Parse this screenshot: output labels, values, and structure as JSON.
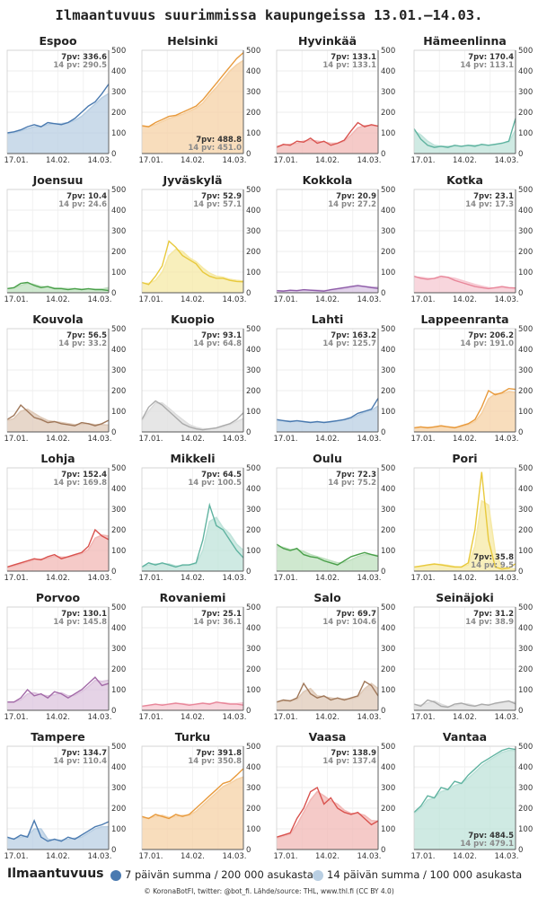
{
  "title": "Ilmaantuvuus suurimmissa kaupungeissa 13.01.–14.03.",
  "legend": {
    "title": "Ilmaantuvuus",
    "item_7": "7 päivän summa / 200 000 asukasta",
    "item_14": "14 päivän summa / 100 000 asukasta",
    "color_7": "#4a7ab0",
    "color_14": "#b9cfe3"
  },
  "footer": "© KoronaBotFI, twitter: @bot_fi. Lähde/source: THL, www.thl.fi (CC BY 4.0)",
  "chart_data": {
    "type": "line",
    "x": [
      "13.01.",
      "17.01.",
      "21.01.",
      "25.01.",
      "29.01.",
      "02.02.",
      "06.02.",
      "10.02.",
      "14.02.",
      "18.02.",
      "22.02.",
      "26.02.",
      "02.03.",
      "06.03.",
      "10.03.",
      "14.03."
    ],
    "xticks": [
      "17.01.",
      "14.02.",
      "14.03."
    ],
    "yticks": [
      "0",
      "100",
      "200",
      "300",
      "400",
      "500"
    ],
    "ylim": [
      0,
      500
    ],
    "label_7_prefix": "7pv: ",
    "label_14_prefix": "14 pv: ",
    "panels": [
      {
        "city": "Espoo",
        "color": "#4a7ab0",
        "light": "#b9cfe3",
        "label7": "336.6",
        "label14": "290.5",
        "label_pos": "top",
        "v7": [
          100,
          105,
          115,
          130,
          140,
          130,
          150,
          145,
          140,
          150,
          170,
          200,
          230,
          250,
          290,
          336.6
        ],
        "v14": [
          95,
          100,
          110,
          120,
          130,
          130,
          140,
          145,
          145,
          150,
          160,
          180,
          210,
          240,
          270,
          290.5
        ]
      },
      {
        "city": "Helsinki",
        "color": "#e89a3c",
        "light": "#f6d2a6",
        "label7": "488.8",
        "label14": "451.0",
        "label_pos": "bottom",
        "v7": [
          135,
          130,
          150,
          165,
          180,
          185,
          200,
          215,
          230,
          260,
          300,
          340,
          380,
          420,
          460,
          488.8
        ],
        "v14": [
          130,
          130,
          140,
          155,
          170,
          180,
          190,
          205,
          220,
          245,
          285,
          320,
          360,
          400,
          430,
          451.0
        ]
      },
      {
        "city": "Hyvinkää",
        "color": "#d9534f",
        "light": "#f2b8b6",
        "label7": "133.1",
        "label14": "133.1",
        "label_pos": "top",
        "v7": [
          30,
          45,
          40,
          60,
          55,
          75,
          50,
          60,
          40,
          50,
          65,
          110,
          150,
          130,
          140,
          133.1
        ],
        "v14": [
          35,
          40,
          45,
          50,
          60,
          65,
          60,
          55,
          50,
          50,
          60,
          90,
          125,
          135,
          135,
          133.1
        ]
      },
      {
        "city": "Hämeenlinna",
        "color": "#5fb3a0",
        "light": "#bfe3da",
        "label7": "170.4",
        "label14": "113.1",
        "label_pos": "top",
        "v7": [
          120,
          70,
          40,
          30,
          35,
          30,
          40,
          35,
          40,
          35,
          45,
          40,
          45,
          50,
          60,
          170.4
        ],
        "v14": [
          110,
          90,
          60,
          40,
          35,
          35,
          35,
          35,
          40,
          40,
          40,
          40,
          45,
          50,
          55,
          113.1
        ]
      },
      {
        "city": "Joensuu",
        "color": "#4aa04a",
        "light": "#bfe0bf",
        "label7": "10.4",
        "label14": "24.6",
        "label_pos": "top",
        "v7": [
          20,
          25,
          45,
          50,
          35,
          25,
          30,
          20,
          20,
          15,
          20,
          15,
          20,
          15,
          15,
          10.4
        ],
        "v14": [
          20,
          22,
          35,
          45,
          40,
          30,
          28,
          24,
          22,
          20,
          20,
          18,
          18,
          18,
          18,
          24.6
        ]
      },
      {
        "city": "Jyväskylä",
        "color": "#e8c93c",
        "light": "#f6e9a6",
        "label7": "52.9",
        "label14": "57.1",
        "label_pos": "top",
        "v7": [
          50,
          40,
          80,
          130,
          250,
          220,
          180,
          160,
          140,
          100,
          80,
          70,
          70,
          60,
          55,
          52.9
        ],
        "v14": [
          45,
          45,
          60,
          100,
          180,
          210,
          200,
          170,
          150,
          120,
          95,
          80,
          75,
          65,
          60,
          57.1
        ]
      },
      {
        "city": "Kokkola",
        "color": "#8e5ca8",
        "light": "#d8c4e3",
        "label7": "20.9",
        "label14": "27.2",
        "label_pos": "top",
        "v7": [
          10,
          8,
          12,
          10,
          15,
          12,
          10,
          8,
          15,
          20,
          25,
          30,
          35,
          30,
          25,
          20.9
        ],
        "v14": [
          10,
          9,
          10,
          11,
          12,
          13,
          12,
          10,
          12,
          15,
          20,
          25,
          30,
          30,
          28,
          27.2
        ]
      },
      {
        "city": "Kotka",
        "color": "#e8879a",
        "light": "#f6c8d2",
        "label7": "23.1",
        "label14": "17.3",
        "label_pos": "top",
        "v7": [
          80,
          70,
          65,
          70,
          80,
          75,
          60,
          50,
          40,
          30,
          25,
          20,
          25,
          30,
          25,
          23.1
        ],
        "v14": [
          75,
          75,
          70,
          68,
          72,
          75,
          70,
          60,
          50,
          40,
          32,
          25,
          22,
          25,
          22,
          17.3
        ]
      },
      {
        "city": "Kouvola",
        "color": "#a0785a",
        "light": "#dfcab8",
        "label7": "56.5",
        "label14": "33.2",
        "label_pos": "top",
        "v7": [
          60,
          80,
          130,
          100,
          70,
          60,
          45,
          50,
          40,
          35,
          30,
          45,
          40,
          30,
          40,
          56.5
        ],
        "v14": [
          55,
          65,
          100,
          110,
          90,
          70,
          55,
          50,
          45,
          40,
          35,
          38,
          40,
          35,
          35,
          33.2
        ]
      },
      {
        "city": "Kuopio",
        "color": "#aaaaaa",
        "light": "#dddddd",
        "label7": "93.1",
        "label14": "64.8",
        "label_pos": "top",
        "v7": [
          60,
          120,
          150,
          130,
          100,
          70,
          40,
          25,
          15,
          10,
          15,
          20,
          30,
          40,
          60,
          93.1
        ],
        "v14": [
          55,
          100,
          140,
          140,
          115,
          85,
          60,
          35,
          22,
          15,
          15,
          18,
          25,
          35,
          50,
          64.8
        ]
      },
      {
        "city": "Lahti",
        "color": "#4a7ab0",
        "light": "#b9cfe3",
        "label7": "163.2",
        "label14": "125.7",
        "label_pos": "top",
        "v7": [
          60,
          55,
          50,
          55,
          50,
          45,
          50,
          45,
          50,
          55,
          60,
          70,
          90,
          100,
          110,
          163.2
        ],
        "v14": [
          55,
          55,
          52,
          52,
          50,
          48,
          48,
          48,
          48,
          52,
          58,
          65,
          80,
          95,
          105,
          125.7
        ]
      },
      {
        "city": "Lappeenranta",
        "color": "#e89a3c",
        "light": "#f6d2a6",
        "label7": "206.2",
        "label14": "191.0",
        "label_pos": "top",
        "v7": [
          20,
          25,
          20,
          25,
          30,
          25,
          20,
          30,
          40,
          60,
          120,
          200,
          180,
          190,
          210,
          206.2
        ],
        "v14": [
          20,
          22,
          22,
          22,
          25,
          25,
          22,
          25,
          35,
          50,
          90,
          160,
          185,
          185,
          195,
          191.0
        ]
      },
      {
        "city": "Lohja",
        "color": "#d9534f",
        "light": "#f2b8b6",
        "label7": "152.4",
        "label14": "169.8",
        "label_pos": "top",
        "v7": [
          20,
          30,
          40,
          50,
          60,
          55,
          70,
          80,
          60,
          70,
          80,
          90,
          120,
          200,
          170,
          152.4
        ],
        "v14": [
          20,
          25,
          35,
          45,
          55,
          58,
          62,
          72,
          68,
          68,
          75,
          85,
          105,
          160,
          175,
          169.8
        ]
      },
      {
        "city": "Mikkeli",
        "color": "#5fb3a0",
        "light": "#bfe3da",
        "label7": "64.5",
        "label14": "100.5",
        "label_pos": "top",
        "v7": [
          20,
          40,
          30,
          40,
          30,
          20,
          30,
          30,
          40,
          150,
          320,
          220,
          200,
          150,
          100,
          64.5
        ],
        "v14": [
          20,
          30,
          35,
          35,
          35,
          25,
          25,
          30,
          35,
          100,
          240,
          260,
          210,
          180,
          130,
          100.5
        ]
      },
      {
        "city": "Oulu",
        "color": "#4aa04a",
        "light": "#bfe0bf",
        "label7": "72.3",
        "label14": "75.2",
        "label_pos": "top",
        "v7": [
          130,
          110,
          100,
          110,
          80,
          70,
          65,
          50,
          40,
          30,
          50,
          70,
          80,
          90,
          80,
          72.3
        ],
        "v14": [
          120,
          115,
          105,
          105,
          95,
          80,
          70,
          60,
          50,
          40,
          42,
          55,
          70,
          80,
          80,
          75.2
        ]
      },
      {
        "city": "Pori",
        "color": "#e8c93c",
        "light": "#f6e9a6",
        "label7": "35.8",
        "label14": "9.5",
        "label_pos": "bottom",
        "v7": [
          20,
          25,
          30,
          35,
          30,
          25,
          20,
          20,
          40,
          200,
          480,
          150,
          20,
          10,
          15,
          35.8
        ],
        "v14": [
          20,
          22,
          28,
          32,
          32,
          28,
          22,
          20,
          30,
          120,
          340,
          320,
          90,
          20,
          12,
          9.5
        ]
      },
      {
        "city": "Porvoo",
        "color": "#a36aa8",
        "light": "#dcc4de",
        "label7": "130.1",
        "label14": "145.8",
        "label_pos": "top",
        "v7": [
          40,
          40,
          60,
          100,
          70,
          80,
          60,
          90,
          80,
          60,
          80,
          100,
          130,
          160,
          120,
          130.1
        ],
        "v14": [
          40,
          40,
          50,
          80,
          85,
          75,
          70,
          75,
          85,
          70,
          72,
          90,
          115,
          145,
          140,
          145.8
        ]
      },
      {
        "city": "Rovaniemi",
        "color": "#e8879a",
        "light": "#f6c8d2",
        "label7": "25.1",
        "label14": "36.1",
        "label_pos": "top",
        "v7": [
          20,
          25,
          30,
          25,
          30,
          35,
          30,
          25,
          30,
          35,
          30,
          40,
          35,
          30,
          30,
          25.1
        ],
        "v14": [
          20,
          22,
          27,
          28,
          28,
          32,
          32,
          28,
          28,
          32,
          32,
          35,
          37,
          33,
          32,
          36.1
        ]
      },
      {
        "city": "Salo",
        "color": "#a0785a",
        "light": "#dfcab8",
        "label7": "69.7",
        "label14": "104.6",
        "label_pos": "top",
        "v7": [
          40,
          50,
          45,
          60,
          130,
          80,
          60,
          70,
          50,
          60,
          50,
          60,
          70,
          140,
          120,
          69.7
        ],
        "v14": [
          40,
          45,
          48,
          52,
          90,
          105,
          70,
          65,
          60,
          55,
          55,
          55,
          65,
          105,
          130,
          104.6
        ]
      },
      {
        "city": "Seinäjoki",
        "color": "#aaaaaa",
        "light": "#dddddd",
        "label7": "31.2",
        "label14": "38.9",
        "label_pos": "top",
        "v7": [
          30,
          20,
          50,
          40,
          20,
          15,
          30,
          35,
          25,
          20,
          30,
          25,
          35,
          40,
          45,
          31.2
        ],
        "v14": [
          28,
          25,
          35,
          45,
          30,
          18,
          22,
          32,
          30,
          22,
          25,
          28,
          30,
          38,
          42,
          38.9
        ]
      },
      {
        "city": "Tampere",
        "color": "#4a7ab0",
        "light": "#b9cfe3",
        "label7": "134.7",
        "label14": "110.4",
        "label_pos": "top",
        "v7": [
          60,
          50,
          70,
          60,
          140,
          60,
          40,
          50,
          40,
          60,
          50,
          70,
          90,
          110,
          120,
          134.7
        ],
        "v14": [
          55,
          52,
          60,
          65,
          100,
          100,
          50,
          45,
          45,
          50,
          55,
          60,
          80,
          100,
          110,
          110.4
        ]
      },
      {
        "city": "Turku",
        "color": "#e89a3c",
        "light": "#f6d2a6",
        "label7": "391.8",
        "label14": "350.8",
        "label_pos": "top",
        "v7": [
          160,
          150,
          170,
          160,
          150,
          170,
          160,
          170,
          200,
          230,
          260,
          290,
          320,
          330,
          360,
          391.8
        ],
        "v14": [
          155,
          152,
          160,
          165,
          155,
          160,
          165,
          165,
          185,
          215,
          245,
          275,
          305,
          320,
          340,
          350.8
        ]
      },
      {
        "city": "Vaasa",
        "color": "#d9534f",
        "light": "#f2b8b6",
        "label7": "138.9",
        "label14": "137.4",
        "label_pos": "top",
        "v7": [
          60,
          70,
          80,
          150,
          200,
          280,
          300,
          220,
          250,
          200,
          180,
          170,
          180,
          150,
          120,
          138.9
        ],
        "v14": [
          55,
          65,
          75,
          120,
          180,
          240,
          280,
          260,
          235,
          220,
          190,
          175,
          175,
          165,
          140,
          137.4
        ]
      },
      {
        "city": "Vantaa",
        "color": "#5fb3a0",
        "light": "#bfe3da",
        "label7": "484.5",
        "label14": "479.1",
        "label_pos": "bottom",
        "v7": [
          180,
          210,
          260,
          250,
          300,
          290,
          330,
          320,
          360,
          390,
          420,
          440,
          460,
          480,
          490,
          484.5
        ],
        "v14": [
          175,
          200,
          240,
          250,
          280,
          290,
          310,
          320,
          345,
          375,
          405,
          430,
          450,
          470,
          480,
          479.1
        ]
      }
    ]
  }
}
